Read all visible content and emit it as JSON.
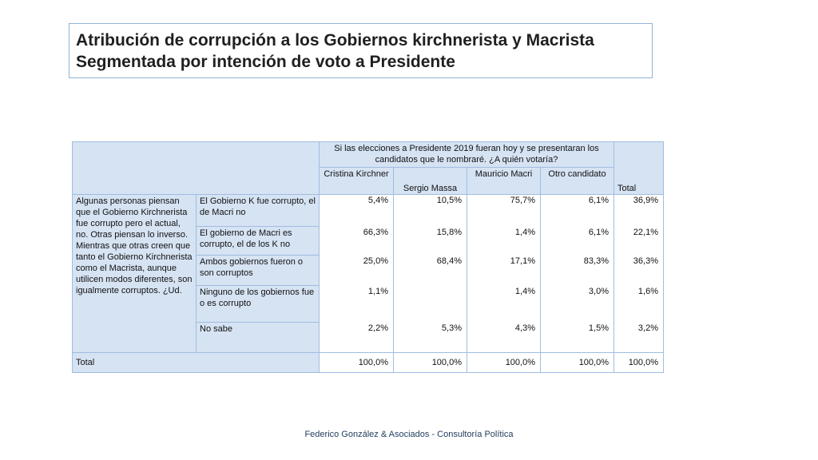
{
  "title": {
    "line1": "Atribución de corrupción a los Gobiernos kirchnerista  y Macrista",
    "line2": "Segmentada por intención de voto a Presidente"
  },
  "table": {
    "question": "Si las elecciones a Presidente 2019 fueran hoy y se presentaran los candidatos que le nombraré. ¿A quién votaría?",
    "columns": [
      "Cristina Kirchner",
      "Sergio Massa",
      "Mauricio Macri",
      "Otro candidato"
    ],
    "total_header": "Total",
    "row_group_label": "Algunas personas piensan que el Gobierno Kirchnerista fue corrupto pero el actual, no. Otras piensan lo inverso. Mientras que otras creen que tanto el Gobierno Kirchnerista como el Macrista, aunque utilicen modos diferentes, son igualmente corruptos. ¿Ud.",
    "rows": [
      {
        "label": "El Gobierno K fue corrupto, el de Macri no",
        "values": [
          "5,4%",
          "10,5%",
          "75,7%",
          "6,1%",
          "36,9%"
        ]
      },
      {
        "label": "El gobierno de Macri es corrupto, el de los K no",
        "values": [
          "66,3%",
          "15,8%",
          "1,4%",
          "6,1%",
          "22,1%"
        ]
      },
      {
        "label": "Ambos gobiernos fueron o son corruptos",
        "values": [
          "25,0%",
          "68,4%",
          "17,1%",
          "83,3%",
          "36,3%"
        ]
      },
      {
        "label": "Ninguno de los gobiernos fue o es corrupto",
        "values": [
          "1,1%",
          "",
          "1,4%",
          "3,0%",
          "1,6%"
        ]
      },
      {
        "label": "No sabe",
        "values": [
          "2,2%",
          "5,3%",
          "4,3%",
          "1,5%",
          "3,2%"
        ]
      }
    ],
    "total_row": {
      "label": "Total",
      "values": [
        "100,0%",
        "100,0%",
        "100,0%",
        "100,0%",
        "100,0%"
      ]
    }
  },
  "footer": "Federico González & Asociados - Consultoría Política"
}
